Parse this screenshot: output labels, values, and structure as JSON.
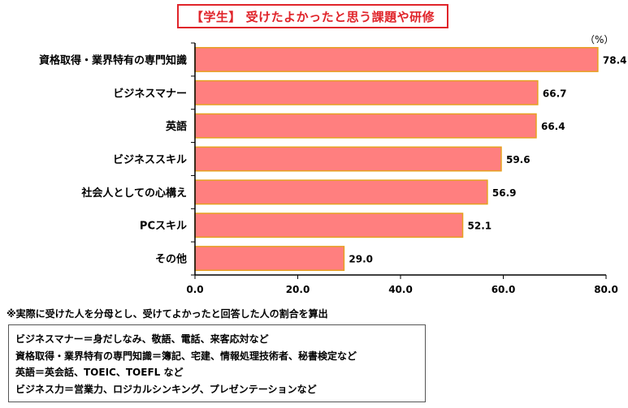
{
  "title": "【学生】 受けたよかったと思う課題や研修",
  "unit": "（%）",
  "footnote": "※実際に受けた人を分母とし、受けてよかったと回答した人の割合を算出",
  "notes": [
    "ビジネスマナー＝身だしなみ、敬語、電話、来客応対など",
    "資格取得・業界特有の専門知識＝簿記、宅建、情報処理技術者、秘書検定など",
    "英語＝英会話、TOEIC、TOEFL など",
    "ビジネス力＝営業力、ロジカルシンキング、プレゼンテーションなど"
  ],
  "colors": {
    "bar_fill": "#ff7f7f",
    "bar_stroke": "#e6a020",
    "title": "#e0242a"
  },
  "chart_data": {
    "type": "bar",
    "orientation": "horizontal",
    "categories": [
      "資格取得・業界特有の専門知識",
      "ビジネスマナー",
      "英語",
      "ビジネススキル",
      "社会人としての心構え",
      "PCスキル",
      "その他"
    ],
    "values": [
      78.4,
      66.7,
      66.4,
      59.6,
      56.9,
      52.1,
      29.0
    ],
    "value_labels": [
      "78.4",
      "66.7",
      "66.4",
      "59.6",
      "56.9",
      "52.1",
      "29.0"
    ],
    "xlim": [
      0,
      80
    ],
    "ticks": [
      "0.0",
      "20.0",
      "40.0",
      "60.0",
      "80.0"
    ],
    "grid": false,
    "legend": "none"
  }
}
